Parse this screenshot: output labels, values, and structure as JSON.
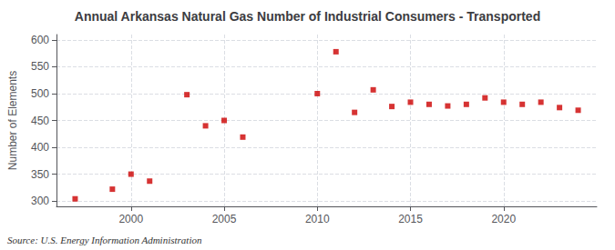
{
  "chart_data": {
    "type": "scatter",
    "title": "Annual Arkansas Natural Gas Number of Industrial Consumers - Transported",
    "ylabel": "Number of Elements",
    "annotation": "Source: U.S. Energy Information Administration",
    "x": [
      1997,
      1999,
      2000,
      2001,
      2003,
      2004,
      2005,
      2006,
      2010,
      2011,
      2012,
      2013,
      2014,
      2015,
      2016,
      2017,
      2018,
      2019,
      2020,
      2021,
      2022,
      2023,
      2024
    ],
    "values": [
      304,
      322,
      350,
      337,
      498,
      440,
      450,
      419,
      500,
      578,
      465,
      507,
      476,
      484,
      480,
      477,
      480,
      492,
      484,
      480,
      484,
      474,
      469
    ],
    "color": "#cc0000",
    "marker": "square",
    "xlim": [
      1996,
      2025
    ],
    "xticks": [
      2000,
      2005,
      2010,
      2015,
      2020
    ],
    "ylim": [
      290,
      610
    ],
    "yticks": [
      300,
      350,
      400,
      450,
      500,
      550,
      600
    ],
    "grid": true
  }
}
